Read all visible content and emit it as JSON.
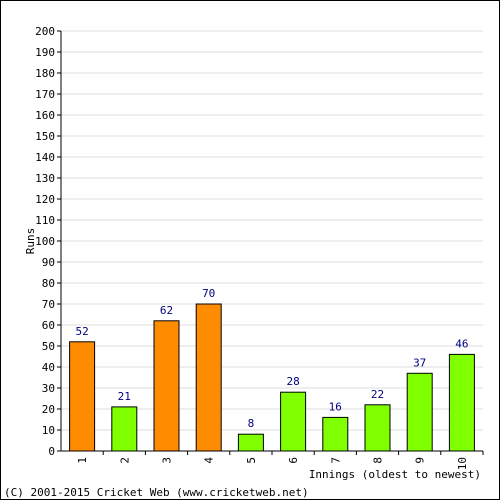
{
  "chart_data": {
    "type": "bar",
    "categories": [
      "1",
      "2",
      "3",
      "4",
      "5",
      "6",
      "7",
      "8",
      "9",
      "10"
    ],
    "values": [
      52,
      21,
      62,
      70,
      8,
      28,
      16,
      22,
      37,
      46
    ],
    "bar_colors": [
      "#ff8c00",
      "#80ff00",
      "#ff8c00",
      "#ff8c00",
      "#80ff00",
      "#80ff00",
      "#80ff00",
      "#80ff00",
      "#80ff00",
      "#80ff00"
    ],
    "xlabel": "Innings (oldest to newest)",
    "ylabel": "Runs",
    "ylim": [
      0,
      200
    ],
    "y_ticks": [
      0,
      10,
      20,
      30,
      40,
      50,
      60,
      70,
      80,
      90,
      100,
      110,
      120,
      130,
      140,
      150,
      160,
      170,
      180,
      190,
      200
    ],
    "grid": true,
    "value_labels": true
  },
  "footer": {
    "copyright": "(C) 2001-2015 Cricket Web (www.cricketweb.net)"
  }
}
